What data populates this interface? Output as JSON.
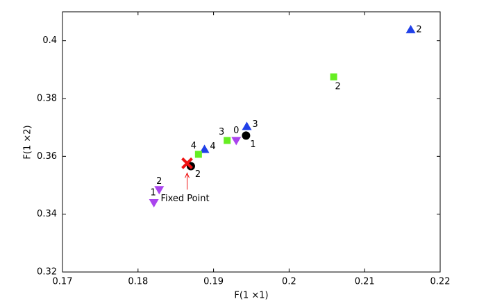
{
  "chart_data": {
    "type": "scatter",
    "x_label": "F(1 ×1)",
    "y_label": "F(1 ×2)",
    "xlim": [
      0.17,
      0.22
    ],
    "xticks": [
      0.17,
      0.18,
      0.19,
      0.2,
      0.21,
      0.22
    ],
    "ylim": [
      0.32,
      0.41
    ],
    "yticks": [
      0.32,
      0.34,
      0.36,
      0.38,
      0.4
    ],
    "series": [
      {
        "marker": "circle",
        "color": "#000000",
        "x": [
          0.187,
          0.1943
        ],
        "values": [
          0.3566,
          0.3672
        ],
        "point_labels": [
          "2",
          "1"
        ]
      },
      {
        "marker": "triangle-up",
        "color": "#2040e8",
        "x": [
          0.2161,
          0.1944,
          0.1888
        ],
        "values": [
          0.4038,
          0.3703,
          0.3624
        ],
        "point_labels": [
          "2",
          "3",
          "4"
        ]
      },
      {
        "marker": "square",
        "color": "#66ee22",
        "x": [
          0.2059,
          0.1918,
          0.188
        ],
        "values": [
          0.3875,
          0.3655,
          0.3607
        ],
        "point_labels": [
          "2",
          "3",
          "4"
        ]
      },
      {
        "marker": "triangle-down",
        "color": "#aa44ee",
        "x": [
          0.193,
          0.1828,
          0.1821
        ],
        "values": [
          0.3655,
          0.3485,
          0.344
        ],
        "point_labels": [
          "0",
          "2",
          "1"
        ]
      },
      {
        "marker": "cross",
        "color": "#ee1111",
        "x": [
          0.1865
        ],
        "values": [
          0.3576
        ]
      }
    ],
    "annotation": {
      "text": "Fixed Point",
      "color": "#ee1111"
    }
  }
}
